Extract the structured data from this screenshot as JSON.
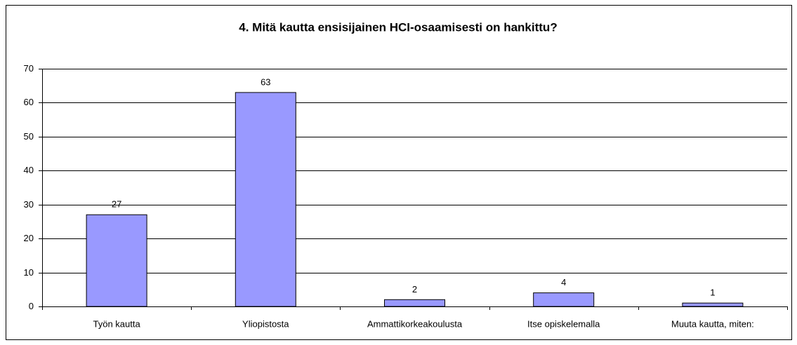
{
  "chart_data": {
    "type": "bar",
    "title": "4. Mitä kautta ensisijainen HCI-osaamisesti on hankittu?",
    "categories": [
      "Työn kautta",
      "Yliopistosta",
      "Ammattikorkeakoulusta",
      "Itse opiskelemalla",
      "Muuta kautta, miten:"
    ],
    "values": [
      27,
      63,
      2,
      4,
      1
    ],
    "color": "#9999ff",
    "ylim": [
      0,
      70
    ],
    "yticks": [
      0,
      10,
      20,
      30,
      40,
      50,
      60,
      70
    ],
    "grid": true
  }
}
